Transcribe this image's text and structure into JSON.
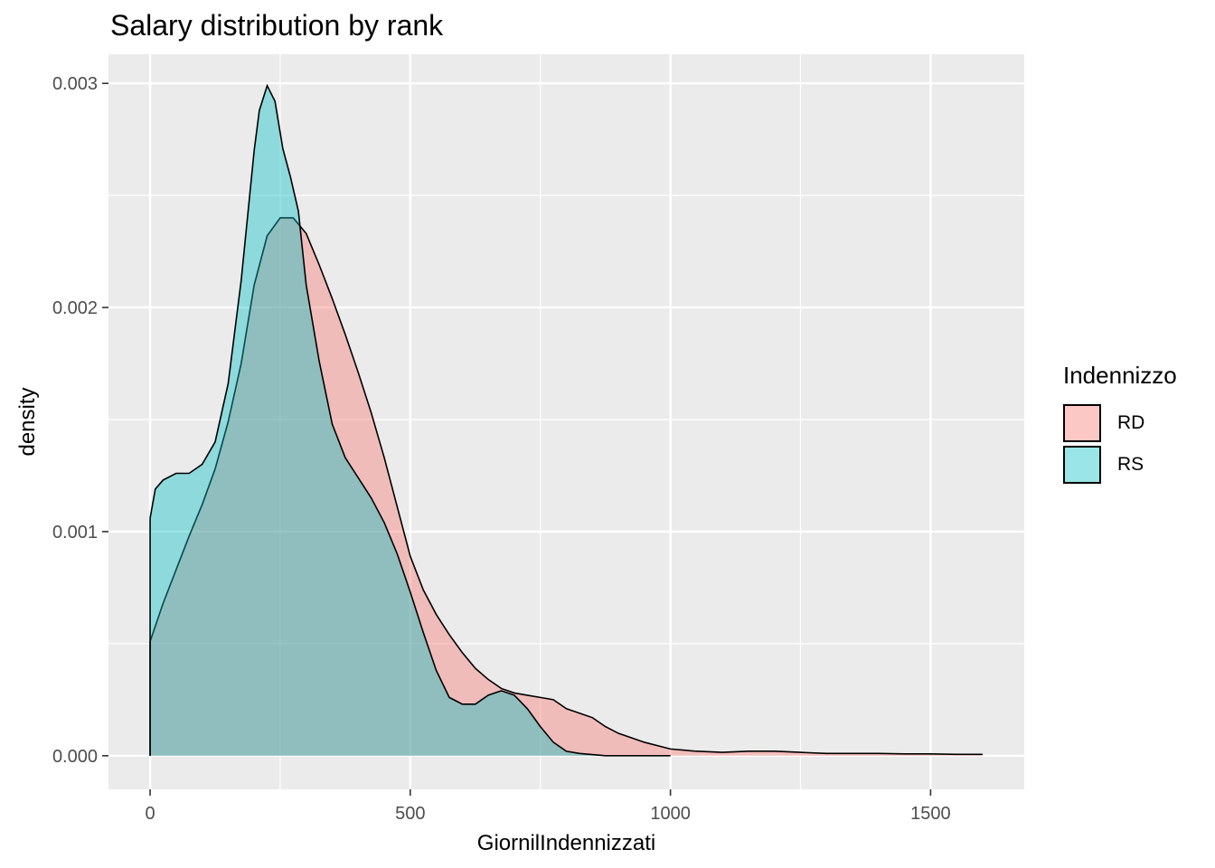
{
  "chart_data": {
    "type": "area",
    "title": "Salary distribution by rank",
    "xlabel": "GiornilIndennizzati",
    "ylabel": "density",
    "xlim": [
      -80,
      1680
    ],
    "ylim": [
      -0.00015,
      0.00313
    ],
    "x_ticks": [
      0,
      500,
      1000,
      1500
    ],
    "x_tick_labels": [
      "0",
      "500",
      "1000",
      "1500"
    ],
    "y_ticks": [
      0.0,
      0.001,
      0.002,
      0.003
    ],
    "y_tick_labels": [
      "0.000",
      "0.001",
      "0.002",
      "0.003"
    ],
    "grid": true,
    "legend_position": "right",
    "legend_title": "Indennizzo",
    "series": [
      {
        "name": "RD",
        "color": "#F8766D",
        "x": [
          0,
          25,
          50,
          75,
          100,
          125,
          150,
          175,
          200,
          225,
          250,
          275,
          300,
          325,
          350,
          375,
          400,
          425,
          450,
          475,
          500,
          525,
          550,
          575,
          600,
          625,
          650,
          675,
          700,
          725,
          750,
          775,
          800,
          825,
          850,
          875,
          900,
          950,
          1000,
          1050,
          1100,
          1150,
          1200,
          1250,
          1300,
          1350,
          1400,
          1450,
          1500,
          1550,
          1600
        ],
        "y": [
          0.00051,
          0.00068,
          0.00083,
          0.00098,
          0.00112,
          0.00128,
          0.00149,
          0.00175,
          0.0021,
          0.00232,
          0.0024,
          0.0024,
          0.00233,
          0.00219,
          0.00204,
          0.00188,
          0.00171,
          0.00153,
          0.00133,
          0.00111,
          0.00089,
          0.00074,
          0.00063,
          0.00054,
          0.00046,
          0.00039,
          0.00034,
          0.0003,
          0.00028,
          0.00027,
          0.00026,
          0.00025,
          0.00021,
          0.00019,
          0.00017,
          0.00013,
          0.0001,
          6e-05,
          3e-05,
          2e-05,
          1.5e-05,
          2e-05,
          2e-05,
          1.5e-05,
          1e-05,
          1e-05,
          1e-05,
          8e-06,
          8e-06,
          6e-06,
          6e-06
        ]
      },
      {
        "name": "RS",
        "color": "#00BFC4",
        "x": [
          0,
          10,
          25,
          50,
          75,
          100,
          125,
          150,
          175,
          200,
          210,
          225,
          240,
          255,
          270,
          285,
          300,
          325,
          350,
          375,
          400,
          425,
          450,
          475,
          500,
          525,
          550,
          575,
          600,
          625,
          650,
          675,
          700,
          725,
          750,
          775,
          800,
          825,
          850,
          875,
          900,
          950,
          1000
        ],
        "y": [
          0.00106,
          0.00119,
          0.00123,
          0.00126,
          0.00126,
          0.0013,
          0.0014,
          0.00166,
          0.00212,
          0.0027,
          0.00288,
          0.00299,
          0.00292,
          0.00271,
          0.00258,
          0.00243,
          0.0021,
          0.00176,
          0.00148,
          0.00133,
          0.00124,
          0.00115,
          0.00104,
          0.0009,
          0.00073,
          0.00055,
          0.00038,
          0.00026,
          0.00023,
          0.00023,
          0.00027,
          0.00029,
          0.00027,
          0.00021,
          0.00013,
          6e-05,
          2e-05,
          1e-05,
          5e-06,
          0.0,
          0.0,
          0.0,
          0.0
        ]
      }
    ]
  }
}
